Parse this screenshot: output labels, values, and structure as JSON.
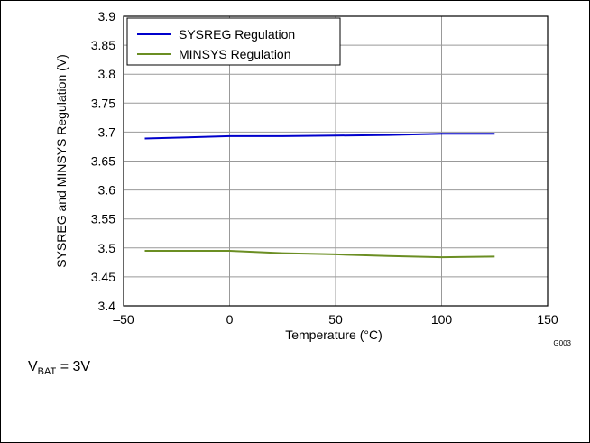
{
  "chart_data": {
    "type": "line",
    "xlabel": "Temperature (°C)",
    "ylabel": "SYSREG and MINSYS Regulation (V)",
    "xlim": [
      -50,
      150
    ],
    "ylim": [
      3.4,
      3.9
    ],
    "xticks": [
      "–50",
      "0",
      "50",
      "100",
      "150"
    ],
    "yticks": [
      "3.4",
      "3.45",
      "3.5",
      "3.55",
      "3.6",
      "3.65",
      "3.7",
      "3.75",
      "3.8",
      "3.85",
      "3.9"
    ],
    "grid": true,
    "legend_position": "top-left",
    "series": [
      {
        "name": "SYSREG Regulation",
        "color": "#0000cc",
        "x": [
          -40,
          -20,
          0,
          25,
          50,
          75,
          100,
          125
        ],
        "y": [
          3.689,
          3.691,
          3.693,
          3.693,
          3.694,
          3.695,
          3.697,
          3.697
        ]
      },
      {
        "name": "MINSYS Regulation",
        "color": "#6b8e23",
        "x": [
          -40,
          -20,
          0,
          25,
          50,
          75,
          100,
          125
        ],
        "y": [
          3.495,
          3.495,
          3.495,
          3.491,
          3.489,
          3.486,
          3.484,
          3.485
        ]
      }
    ]
  },
  "figure_id": "G003",
  "condition": {
    "label": "V",
    "subscript": "BAT",
    "value": " = 3V"
  }
}
